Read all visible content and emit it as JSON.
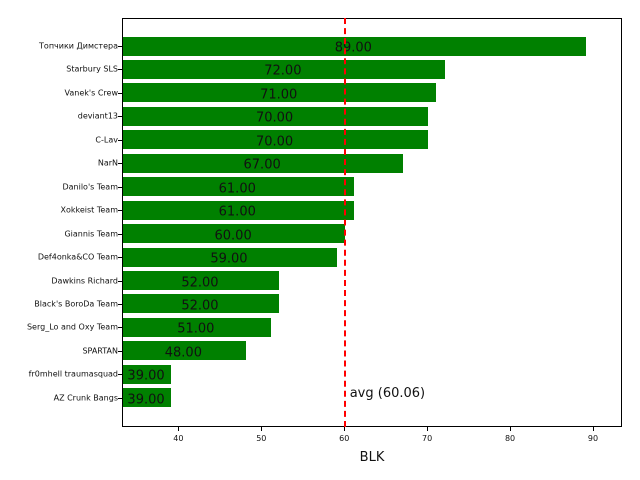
{
  "chart_data": {
    "type": "bar",
    "orientation": "horizontal",
    "title": "",
    "xlabel": "BLK",
    "ylabel": "",
    "xlim": [
      33.2,
      93.5
    ],
    "xticks": [
      40,
      50,
      60,
      70,
      80,
      90
    ],
    "grid": false,
    "bar_color": "#008000",
    "categories": [
      "Топчики Димстера",
      "Starbury SLS",
      "Vanek's Crew",
      "deviant13",
      "C-Lav",
      "NarN",
      "Danilo's Team",
      "Xokkeist Team",
      "Giannis Team",
      "Def4onka&CO Team",
      "Dawkins Richard",
      "Black's BoroDa Team",
      "Serg_Lo and Oxy Team",
      "SPARTAN",
      "fr0mhell traumasquad",
      "AZ Crunk Bangs"
    ],
    "values": [
      89.0,
      72.0,
      71.0,
      70.0,
      70.0,
      67.0,
      61.0,
      61.0,
      60.0,
      59.0,
      52.0,
      52.0,
      51.0,
      48.0,
      39.0,
      39.0
    ],
    "value_labels": [
      "89.00",
      "72.00",
      "71.00",
      "70.00",
      "70.00",
      "67.00",
      "61.00",
      "61.00",
      "60.00",
      "59.00",
      "52.00",
      "52.00",
      "51.00",
      "48.00",
      "39.00",
      "39.00"
    ],
    "annotations": [
      {
        "type": "vline",
        "x": 60.06,
        "style": "dashed",
        "color": "#ff0000",
        "label": "avg (60.06)"
      }
    ]
  }
}
